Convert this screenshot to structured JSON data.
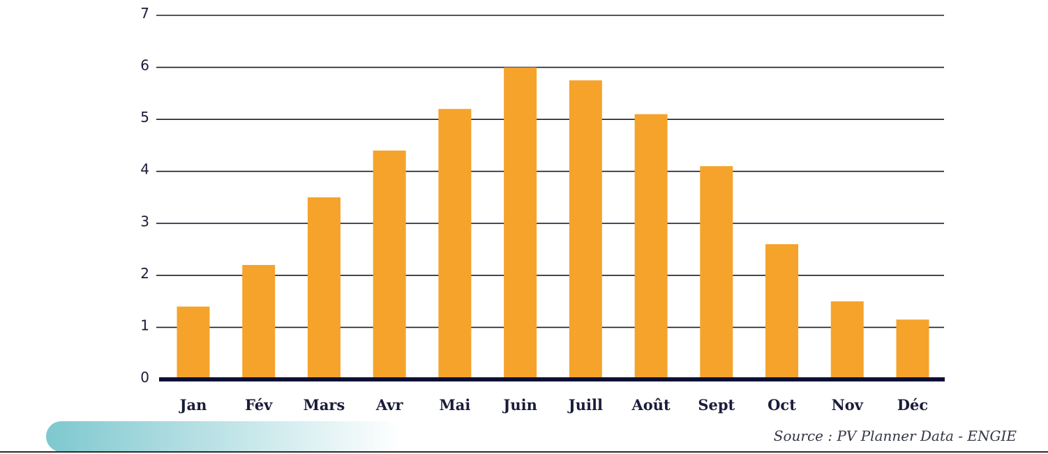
{
  "chart_data": {
    "type": "bar",
    "categories": [
      "Jan",
      "Fév",
      "Mars",
      "Avr",
      "Mai",
      "Juin",
      "Juill",
      "Août",
      "Sept",
      "Oct",
      "Nov",
      "Déc"
    ],
    "values": [
      1.4,
      2.2,
      3.5,
      4.4,
      5.2,
      6.0,
      5.75,
      5.1,
      4.1,
      2.6,
      1.5,
      1.15
    ],
    "ylim": [
      0,
      7
    ],
    "yticks": [
      "0",
      "1",
      "2",
      "3",
      "4",
      "5",
      "6",
      "7"
    ],
    "grid": true,
    "legend": "none",
    "colors": {
      "bar": "#f5a32b",
      "grid": "#1a1a2e",
      "baseline": "#0d1033",
      "text": "#1a1c3a",
      "accent_band": "#7ec8cf"
    }
  },
  "source": "Source : PV Planner Data - ENGIE"
}
